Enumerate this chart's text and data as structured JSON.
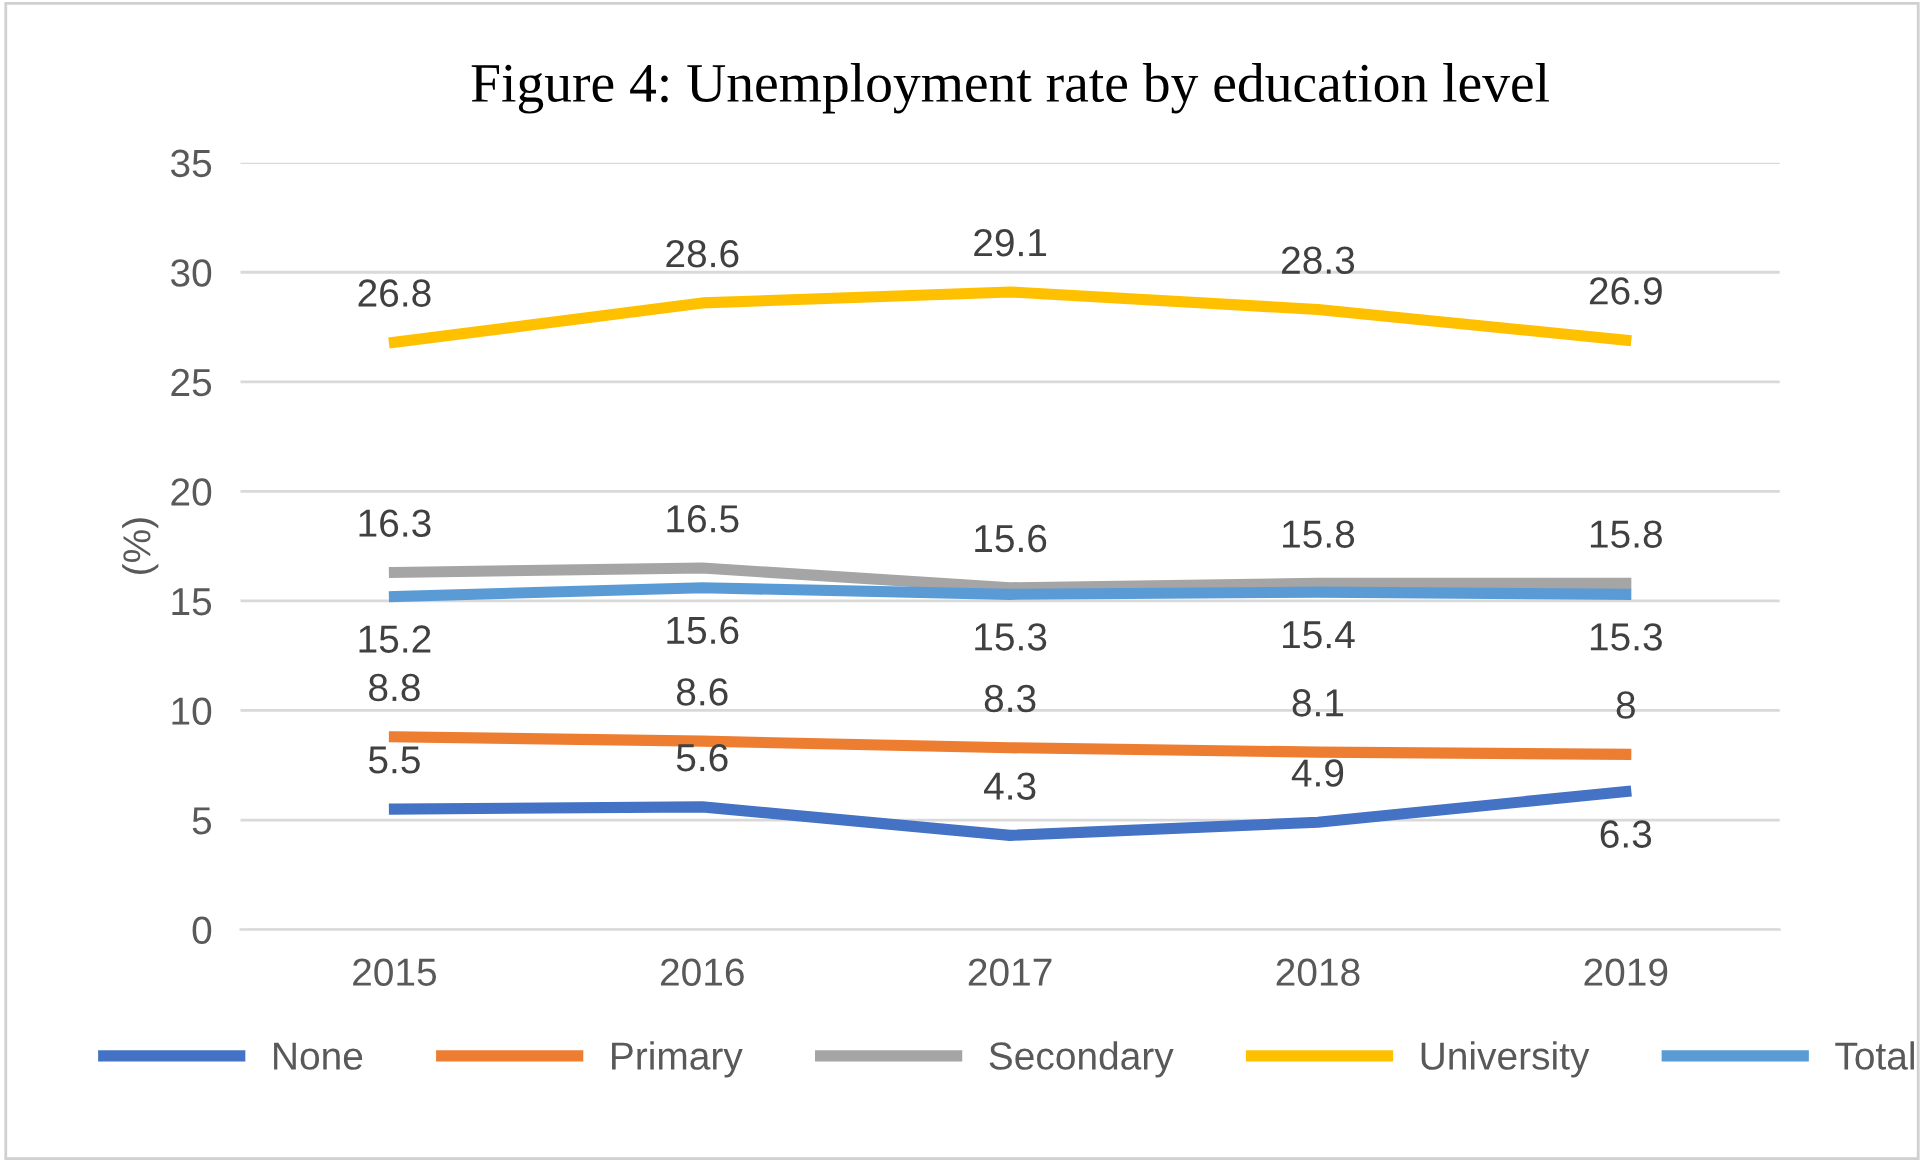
{
  "chart_data": {
    "type": "line",
    "title": "Figure 4: Unemployment rate by education level",
    "ylabel": "(%)",
    "categories": [
      "2015",
      "2016",
      "2017",
      "2018",
      "2019"
    ],
    "series": [
      {
        "name": "None",
        "color": "#4472c4",
        "values": [
          5.5,
          5.6,
          4.3,
          4.9,
          6.3
        ]
      },
      {
        "name": "Primary",
        "color": "#ed7d31",
        "values": [
          8.8,
          8.6,
          8.3,
          8.1,
          8
        ]
      },
      {
        "name": "Secondary",
        "color": "#a5a5a5",
        "values": [
          16.3,
          16.5,
          15.6,
          15.8,
          15.8
        ]
      },
      {
        "name": "University",
        "color": "#ffc000",
        "values": [
          26.8,
          28.6,
          29.1,
          28.3,
          26.9
        ]
      },
      {
        "name": "Total",
        "color": "#5b9bd5",
        "values": [
          15.2,
          15.6,
          15.3,
          15.4,
          15.3
        ]
      }
    ],
    "ylim": [
      0,
      35
    ],
    "yticks": [
      0,
      5,
      10,
      15,
      20,
      25,
      30,
      35
    ],
    "grid": "y",
    "legend": "bottom",
    "data_labels": true,
    "marker": "none",
    "line_style": "solid"
  }
}
